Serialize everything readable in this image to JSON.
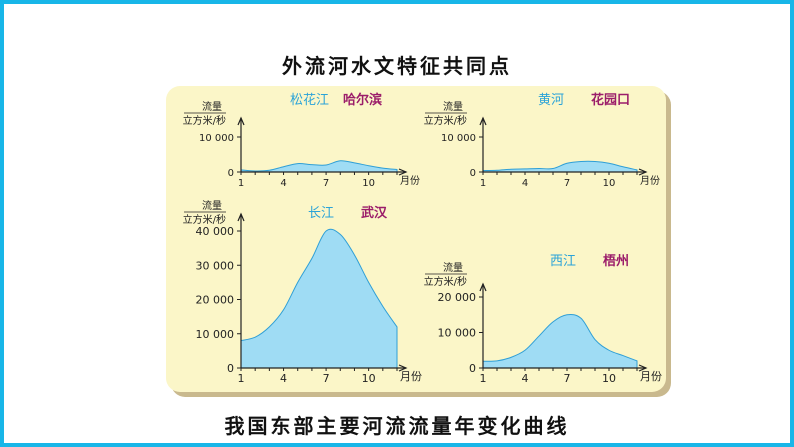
{
  "page": {
    "title": "外流河水文特征共同点",
    "caption": "我国东部主要河流流量年变化曲线"
  },
  "colors": {
    "border": "#18b6e8",
    "panel_bg": "#fbf6c8",
    "panel_shadow": "#c9b98e",
    "area_fill": "#9fdcf4",
    "area_stroke": "#2f9fd6",
    "river_name": "#2aa3d8",
    "city_name": "#9b1d6a",
    "axis": "#222222"
  },
  "chart_data": [
    {
      "type": "area",
      "river": "松花江",
      "city": "哈尔滨",
      "ylabel_line1": "流量",
      "ylabel_line2": "立方米/秒",
      "xlabel": "月份",
      "x": [
        1,
        2,
        3,
        4,
        5,
        6,
        7,
        8,
        9,
        10,
        11,
        12
      ],
      "values": [
        600,
        300,
        500,
        1500,
        2400,
        2100,
        2000,
        3200,
        2600,
        1800,
        1100,
        700
      ],
      "ylim": [
        0,
        10000
      ],
      "yticks": [
        0,
        10000
      ],
      "ytick_labels": [
        "0",
        "10 000"
      ],
      "xticks": [
        1,
        4,
        7,
        10
      ],
      "xtick_labels": [
        "1",
        "4",
        "7",
        "10"
      ]
    },
    {
      "type": "area",
      "river": "黄河",
      "city": "花园口",
      "ylabel_line1": "流量",
      "ylabel_line2": "立方米/秒",
      "xlabel": "月份",
      "x": [
        1,
        2,
        3,
        4,
        5,
        6,
        7,
        8,
        9,
        10,
        11,
        12
      ],
      "values": [
        400,
        500,
        800,
        900,
        1000,
        1000,
        2500,
        3000,
        3000,
        2500,
        1500,
        600
      ],
      "ylim": [
        0,
        10000
      ],
      "yticks": [
        0,
        10000
      ],
      "ytick_labels": [
        "0",
        "10 000"
      ],
      "xticks": [
        1,
        4,
        7,
        10
      ],
      "xtick_labels": [
        "1",
        "4",
        "7",
        "10"
      ]
    },
    {
      "type": "area",
      "river": "长江",
      "city": "武汉",
      "ylabel_line1": "流量",
      "ylabel_line2": "立方米/秒",
      "xlabel": "月份",
      "x": [
        1,
        2,
        3,
        4,
        5,
        6,
        7,
        8,
        9,
        10,
        11,
        12
      ],
      "values": [
        8000,
        9000,
        12000,
        17000,
        25000,
        32000,
        40000,
        39000,
        33000,
        25000,
        18000,
        12000
      ],
      "ylim": [
        0,
        40000
      ],
      "yticks": [
        0,
        10000,
        20000,
        30000,
        40000
      ],
      "ytick_labels": [
        "0",
        "10 000",
        "20 000",
        "30 000",
        "40 000"
      ],
      "xticks": [
        1,
        4,
        7,
        10
      ],
      "xtick_labels": [
        "1",
        "4",
        "7",
        "10"
      ]
    },
    {
      "type": "area",
      "river": "西江",
      "city": "梧州",
      "ylabel_line1": "流量",
      "ylabel_line2": "立方米/秒",
      "xlabel": "月份",
      "x": [
        1,
        2,
        3,
        4,
        5,
        6,
        7,
        8,
        9,
        10,
        11,
        12
      ],
      "values": [
        1900,
        2000,
        3000,
        5000,
        9000,
        13000,
        15000,
        14000,
        8000,
        5000,
        3500,
        2000
      ],
      "ylim": [
        0,
        20000
      ],
      "yticks": [
        0,
        10000,
        20000
      ],
      "ytick_labels": [
        "0",
        "10 000",
        "20 000"
      ],
      "xticks": [
        1,
        4,
        7,
        10
      ],
      "xtick_labels": [
        "1",
        "4",
        "7",
        "10"
      ]
    }
  ]
}
